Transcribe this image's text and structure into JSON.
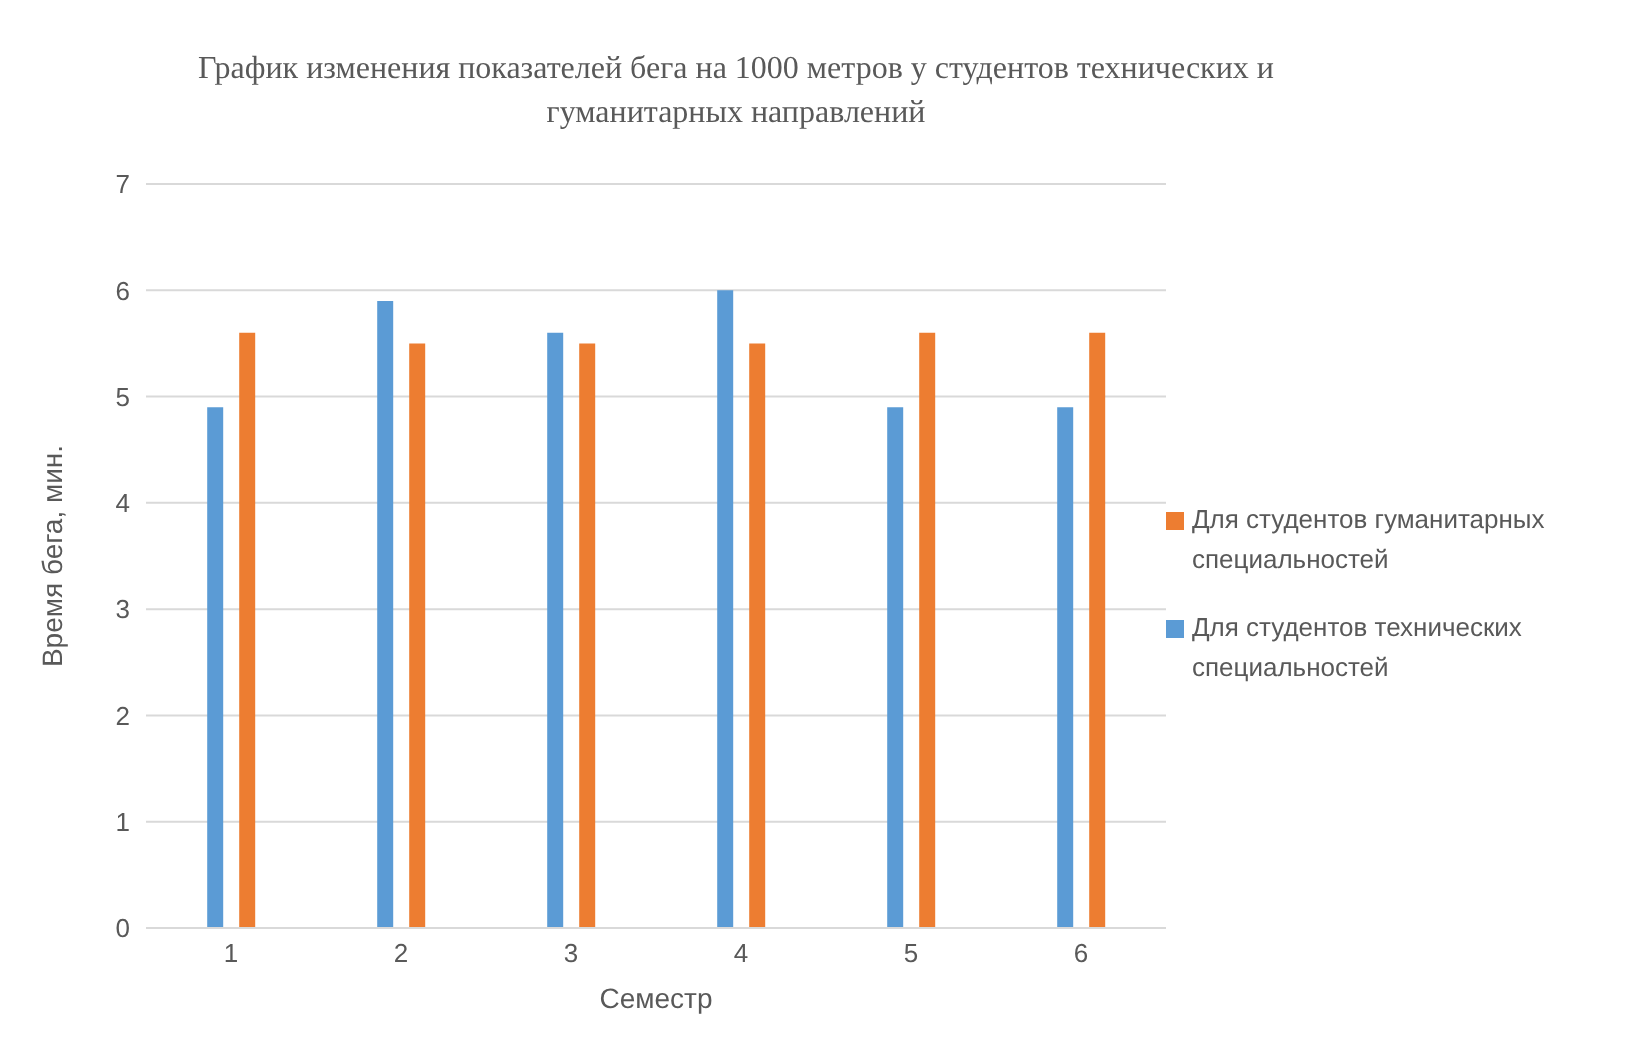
{
  "chart_data": {
    "type": "bar",
    "title": "График изменения показателей бега на 1000 метров у студентов технических и гуманитарных направлений",
    "xlabel": "Семестр",
    "ylabel": "Время бега, мин.",
    "categories": [
      "1",
      "2",
      "3",
      "4",
      "5",
      "6"
    ],
    "series": [
      {
        "name": "Для студентов технических специальностей",
        "color": "#5b9bd5",
        "values": [
          4.9,
          5.9,
          5.6,
          6.0,
          4.9,
          4.9
        ]
      },
      {
        "name": "Для студентов гуманитарных специальностей",
        "color": "#ed7d31",
        "values": [
          5.6,
          5.5,
          5.5,
          5.5,
          5.6,
          5.6
        ]
      }
    ],
    "ylim": [
      0,
      7
    ],
    "yticks": [
      0,
      1,
      2,
      3,
      4,
      5,
      6,
      7
    ],
    "grid": "y",
    "legend": "right"
  }
}
